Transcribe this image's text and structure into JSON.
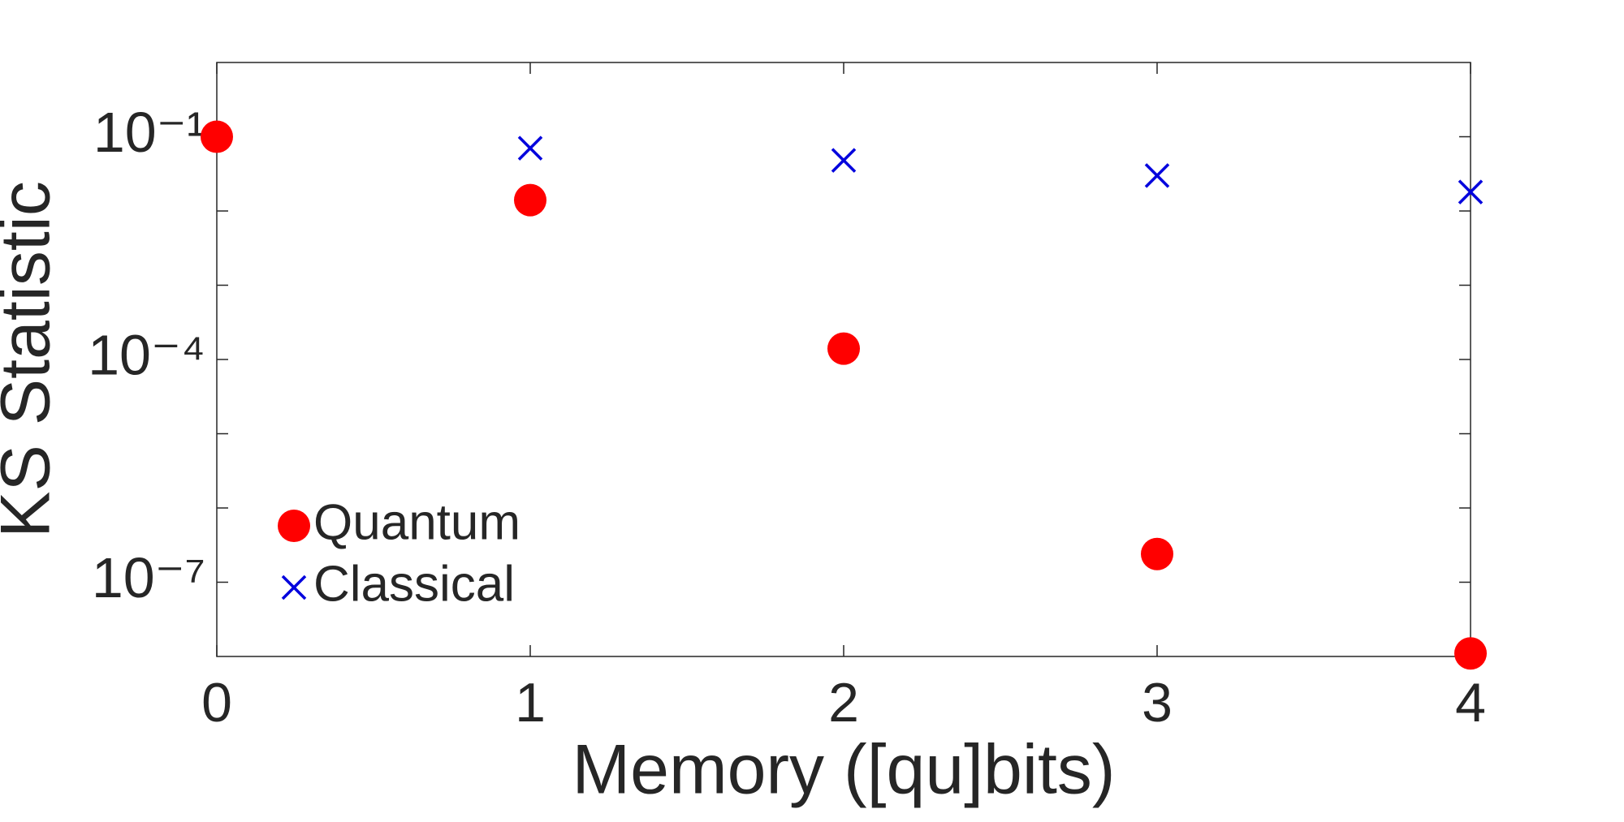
{
  "chart_data": {
    "type": "scatter",
    "x_label": "Memory ([qu]bits)",
    "y_label": "KS Statistic",
    "x": [
      0,
      1,
      2,
      3,
      4
    ],
    "series": [
      {
        "name": "Quantum",
        "color": "#ff0000",
        "marker": "circle",
        "values": [
          0.1,
          0.014,
          0.00014,
          2.4e-07,
          1.1e-08
        ]
      },
      {
        "name": "Classical",
        "color": "#0000dd",
        "marker": "x",
        "values": [
          null,
          0.07,
          0.048,
          0.03,
          0.018
        ]
      }
    ],
    "xlim": [
      0,
      4
    ],
    "xticks": [
      0,
      1,
      2,
      3,
      4
    ],
    "ylim": [
      1e-08,
      1
    ],
    "y_scale": "log",
    "yticks": [
      {
        "value": 0.1,
        "label": "10⁻¹"
      },
      {
        "value": 0.0001,
        "label": "10⁻⁴"
      },
      {
        "value": 1e-07,
        "label": "10⁻⁷"
      }
    ],
    "minor_yticks": [
      0.01,
      0.001,
      1e-05,
      1e-06
    ],
    "legend": "lower left",
    "grid": false
  }
}
